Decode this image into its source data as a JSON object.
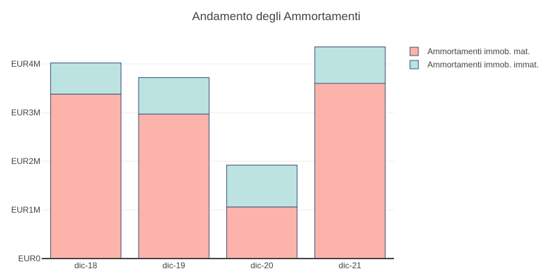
{
  "chart_data": {
    "type": "bar",
    "stacked": true,
    "title": "Andamento degli Ammortamenti",
    "xlabel": "",
    "ylabel": "",
    "categories": [
      "dic-18",
      "dic-19",
      "dic-20",
      "dic-21"
    ],
    "series": [
      {
        "name": "Ammortamenti immob. mat.",
        "values": [
          3.38,
          2.97,
          1.06,
          3.6
        ],
        "color": "#fbb3aa"
      },
      {
        "name": "Ammortamenti immob. immat.",
        "values": [
          0.64,
          0.75,
          0.86,
          0.75
        ],
        "color": "#bce3e0"
      }
    ],
    "bar_outline_color": "#3b4f7a",
    "ylim": [
      0,
      4.6
    ],
    "yticks": [
      0,
      1,
      2,
      3,
      4
    ],
    "ytick_labels": [
      "EUR0",
      "EUR1M",
      "EUR2M",
      "EUR3M",
      "EUR4M"
    ],
    "grid": true,
    "legend_position": "top-right"
  }
}
